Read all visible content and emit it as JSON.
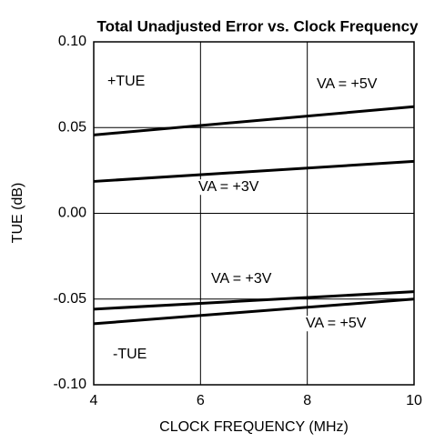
{
  "chart_data": {
    "type": "line",
    "title": "Total Unadjusted Error vs. Clock Frequency",
    "xlabel": "CLOCK FREQUENCY (MHz)",
    "ylabel": "TUE (dB)",
    "x": [
      4,
      10
    ],
    "series": [
      {
        "color": "#000000",
        "values": [
          0.0457,
          0.0622
        ]
      },
      {
        "color": "#000000",
        "values": [
          0.0186,
          0.0303
        ]
      },
      {
        "color": "#000000",
        "values": [
          -0.0559,
          -0.0457
        ]
      },
      {
        "color": "#000000",
        "values": [
          -0.0644,
          -0.05
        ]
      }
    ],
    "annotations": [
      "+TUE",
      "VA = +5V",
      "VA = +3V",
      "VA = +3V",
      "VA = +5V",
      "-TUE"
    ],
    "xlim": [
      4,
      10
    ],
    "xticks": [
      4,
      6,
      8,
      10
    ],
    "ylim": [
      -0.1,
      0.1
    ],
    "yticks": [
      {
        "value": 0.1,
        "label": "0.10"
      },
      {
        "value": 0.05,
        "label": "0.05"
      },
      {
        "value": 0,
        "label": "0.00"
      },
      {
        "value": -0.05,
        "label": "-0.05"
      },
      {
        "value": -0.1,
        "label": "-0.10"
      }
    ],
    "grid": true
  }
}
